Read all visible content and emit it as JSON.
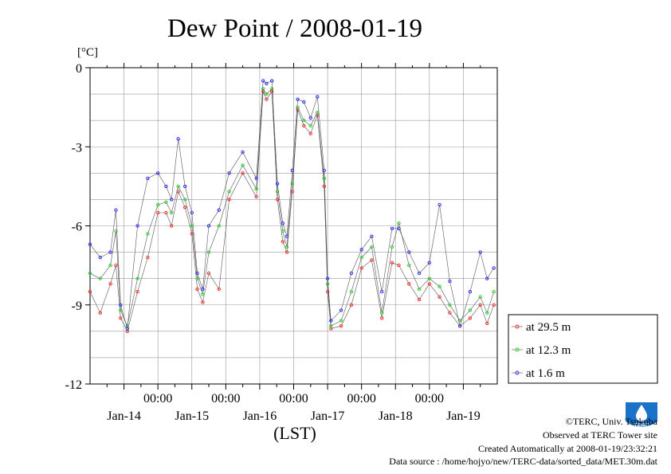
{
  "chart_data": {
    "type": "line",
    "title": "Dew Point / 2008-01-19",
    "ylabel": "[°C]",
    "xlabel": "(LST)",
    "ylim": [
      -12,
      0
    ],
    "yticks": [
      0,
      -3,
      -6,
      -9,
      -12
    ],
    "xlim": [
      0,
      6
    ],
    "time_ticks": [
      {
        "x": 1,
        "label": "00:00"
      },
      {
        "x": 2,
        "label": "00:00"
      },
      {
        "x": 3,
        "label": "00:00"
      },
      {
        "x": 4,
        "label": "00:00"
      },
      {
        "x": 5,
        "label": "00:00"
      }
    ],
    "day_labels": [
      {
        "x": 0.5,
        "label": "Jan-14"
      },
      {
        "x": 1.5,
        "label": "Jan-15"
      },
      {
        "x": 2.5,
        "label": "Jan-16"
      },
      {
        "x": 3.5,
        "label": "Jan-17"
      },
      {
        "x": 4.5,
        "label": "Jan-18"
      },
      {
        "x": 5.5,
        "label": "Jan-19"
      }
    ],
    "grid": true,
    "legend_position": "right",
    "series": [
      {
        "name": "at 29.5 m",
        "color": "#ff3030",
        "x": [
          0,
          0.15,
          0.3,
          0.38,
          0.45,
          0.55,
          0.7,
          0.85,
          1.0,
          1.12,
          1.2,
          1.3,
          1.4,
          1.5,
          1.58,
          1.66,
          1.75,
          1.9,
          2.05,
          2.25,
          2.45,
          2.55,
          2.6,
          2.68,
          2.76,
          2.84,
          2.9,
          2.98,
          3.06,
          3.15,
          3.25,
          3.35,
          3.45,
          3.5,
          3.55,
          3.7,
          3.85,
          4.0,
          4.15,
          4.3,
          4.45,
          4.55,
          4.7,
          4.85,
          5.0,
          5.15,
          5.3,
          5.45,
          5.6,
          5.75,
          5.85,
          5.95
        ],
        "y": [
          -8.5,
          -9.3,
          -8.2,
          -7.5,
          -9.5,
          -10.0,
          -8.5,
          -7.2,
          -5.5,
          -5.5,
          -6.0,
          -4.7,
          -5.3,
          -6.3,
          -8.4,
          -8.9,
          -7.8,
          -8.4,
          -5.0,
          -4.0,
          -4.9,
          -0.9,
          -1.2,
          -0.9,
          -5.0,
          -6.6,
          -7.0,
          -4.7,
          -1.6,
          -2.2,
          -2.5,
          -1.8,
          -4.5,
          -8.5,
          -9.9,
          -9.8,
          -9.0,
          -7.6,
          -7.3,
          -9.5,
          -7.4,
          -7.5,
          -8.2,
          -8.8,
          -8.2,
          -8.7,
          -9.3,
          -9.8,
          -9.5,
          -9.0,
          -9.7,
          -9.0
        ]
      },
      {
        "name": "at 12.3 m",
        "color": "#30d030",
        "x": [
          0,
          0.15,
          0.3,
          0.38,
          0.45,
          0.55,
          0.7,
          0.85,
          1.0,
          1.12,
          1.2,
          1.3,
          1.4,
          1.5,
          1.58,
          1.66,
          1.75,
          1.9,
          2.05,
          2.25,
          2.45,
          2.55,
          2.6,
          2.68,
          2.76,
          2.84,
          2.9,
          2.98,
          3.06,
          3.15,
          3.25,
          3.35,
          3.45,
          3.5,
          3.55,
          3.7,
          3.85,
          4.0,
          4.15,
          4.3,
          4.45,
          4.55,
          4.7,
          4.85,
          5.0,
          5.15,
          5.3,
          5.45,
          5.6,
          5.75,
          5.85,
          5.95
        ],
        "y": [
          -7.8,
          -8.0,
          -7.5,
          -6.2,
          -9.2,
          -9.8,
          -8.0,
          -6.3,
          -5.2,
          -5.1,
          -5.5,
          -4.5,
          -5.0,
          -6.0,
          -8.0,
          -8.6,
          -7.0,
          -6.0,
          -4.7,
          -3.7,
          -4.6,
          -0.8,
          -1.0,
          -0.8,
          -4.7,
          -6.2,
          -6.8,
          -4.4,
          -1.5,
          -2.0,
          -2.2,
          -1.7,
          -4.2,
          -8.2,
          -9.8,
          -9.6,
          -8.5,
          -7.2,
          -6.8,
          -9.3,
          -6.8,
          -5.9,
          -7.5,
          -8.4,
          -8.0,
          -8.3,
          -9.0,
          -9.6,
          -9.2,
          -8.7,
          -9.3,
          -8.5
        ]
      },
      {
        "name": "at 1.6 m",
        "color": "#3030ff",
        "x": [
          0,
          0.15,
          0.3,
          0.38,
          0.45,
          0.55,
          0.7,
          0.85,
          1.0,
          1.12,
          1.2,
          1.3,
          1.4,
          1.5,
          1.58,
          1.66,
          1.75,
          1.9,
          2.05,
          2.25,
          2.45,
          2.55,
          2.6,
          2.68,
          2.76,
          2.84,
          2.9,
          2.98,
          3.06,
          3.15,
          3.25,
          3.35,
          3.45,
          3.5,
          3.55,
          3.7,
          3.85,
          4.0,
          4.15,
          4.3,
          4.45,
          4.55,
          4.7,
          4.85,
          5.0,
          5.15,
          5.3,
          5.45,
          5.6,
          5.75,
          5.85,
          5.95
        ],
        "y": [
          -6.7,
          -7.2,
          -7.0,
          -5.4,
          -9.0,
          -9.9,
          -6.0,
          -4.2,
          -4.0,
          -4.5,
          -5.0,
          -2.7,
          -4.5,
          -5.5,
          -7.8,
          -8.4,
          -6.0,
          -5.4,
          -4.0,
          -3.2,
          -4.2,
          -0.5,
          -0.6,
          -0.5,
          -4.4,
          -5.9,
          -6.4,
          -3.9,
          -1.2,
          -1.3,
          -1.9,
          -1.1,
          -3.9,
          -8.0,
          -9.6,
          -9.2,
          -7.8,
          -6.9,
          -6.4,
          -8.5,
          -6.1,
          -6.1,
          -7.0,
          -7.8,
          -7.4,
          -5.2,
          -8.1,
          -9.8,
          -8.5,
          -7.0,
          -8.0,
          -7.6
        ]
      }
    ]
  },
  "credits": {
    "copyright": "©TERC, Univ. Tsukuba",
    "observed": "Observed at TERC Tower site",
    "created": "Created Automatically at 2008-01-19/23:32:21",
    "source": "Data source : /home/hojyo/new/TERC-data/sorted_data/MET.30m.dat",
    "logo_text": "TERC"
  }
}
